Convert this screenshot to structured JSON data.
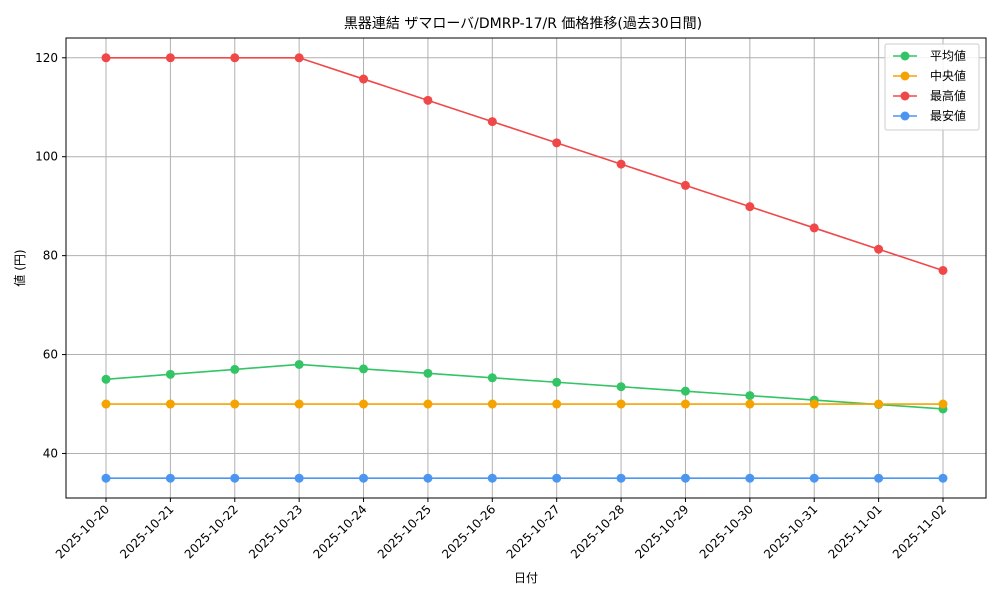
{
  "chart_data": {
    "type": "line",
    "title": "黒器連結 ザマローバ/DMRP-17/R 価格推移(過去30日間)",
    "xlabel": "日付",
    "ylabel": "値 (円)",
    "ylim": [
      31,
      124
    ],
    "yticks": [
      40,
      60,
      80,
      100,
      120
    ],
    "grid": true,
    "legend_position": "top-right",
    "categories": [
      "2025-10-20",
      "2025-10-21",
      "2025-10-22",
      "2025-10-23",
      "2025-10-24",
      "2025-10-25",
      "2025-10-26",
      "2025-10-27",
      "2025-10-28",
      "2025-10-29",
      "2025-10-30",
      "2025-10-31",
      "2025-11-01",
      "2025-11-02"
    ],
    "series": [
      {
        "name": "平均値",
        "color": "#33c466",
        "values": [
          55,
          56,
          57,
          58,
          57.1,
          56.2,
          55.3,
          54.4,
          53.5,
          52.6,
          51.7,
          50.8,
          49.9,
          49
        ]
      },
      {
        "name": "中央値",
        "color": "#f5a300",
        "values": [
          50,
          50,
          50,
          50,
          50,
          50,
          50,
          50,
          50,
          50,
          50,
          50,
          50,
          50
        ]
      },
      {
        "name": "最高値",
        "color": "#f04848",
        "values": [
          120,
          120,
          120,
          120,
          115.7,
          111.4,
          107.1,
          102.8,
          98.5,
          94.2,
          89.9,
          85.6,
          81.3,
          77
        ]
      },
      {
        "name": "最安値",
        "color": "#4a96f0",
        "values": [
          35,
          35,
          35,
          35,
          35,
          35,
          35,
          35,
          35,
          35,
          35,
          35,
          35,
          35
        ]
      }
    ]
  }
}
